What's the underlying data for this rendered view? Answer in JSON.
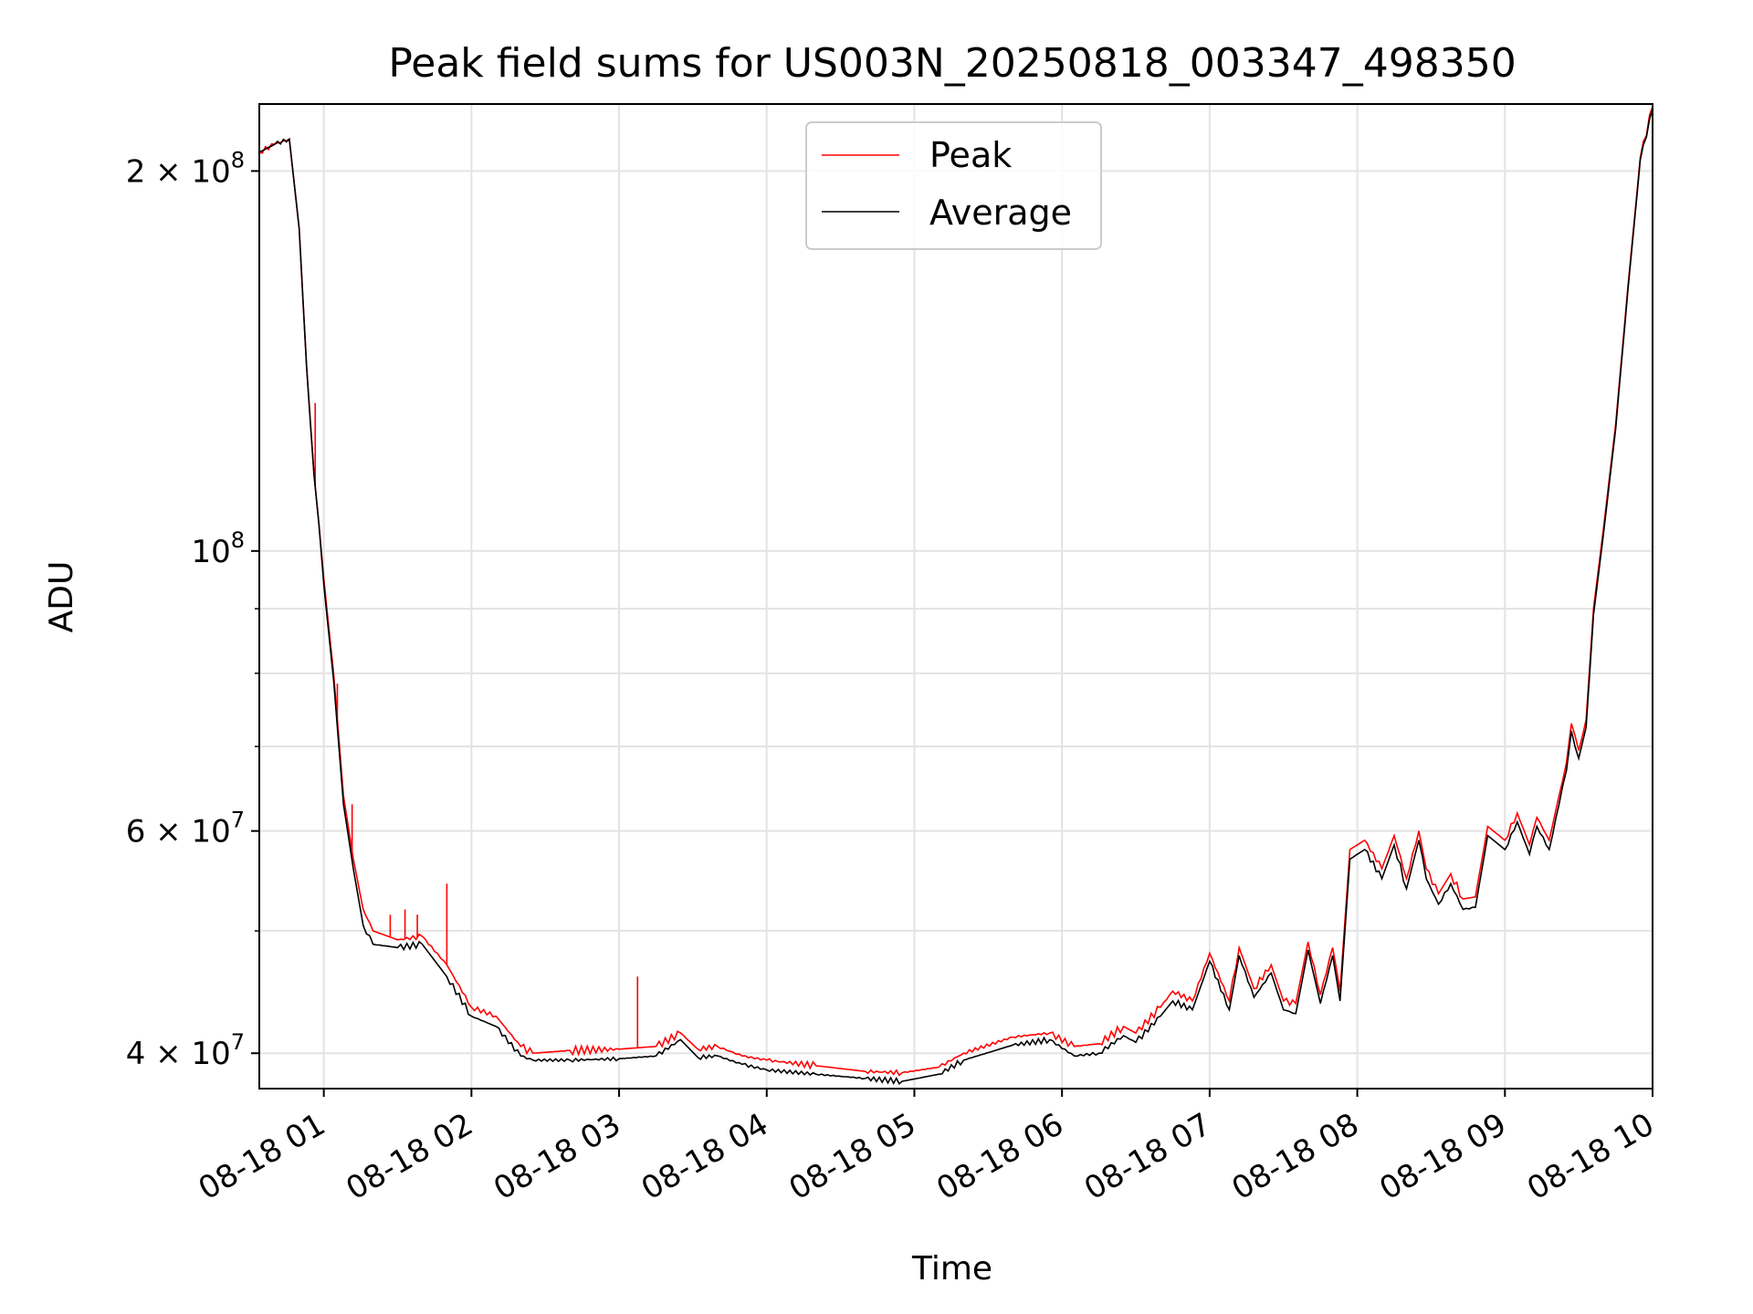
{
  "chart_data": {
    "type": "line",
    "title": "Peak field sums for US003N_20250818_003347_498350",
    "xlabel": "Time",
    "ylabel": "ADU",
    "yscale": "log",
    "xlim": [
      "2025-08-18T00:33:47",
      "2025-08-18T10:00:00"
    ],
    "ylim": [
      37500000,
      226000000
    ],
    "grid": true,
    "legend": {
      "placement": "upper center"
    },
    "x_ticks": [
      "08-18 01",
      "08-18 02",
      "08-18 03",
      "08-18 04",
      "08-18 05",
      "08-18 06",
      "08-18 07",
      "08-18 08",
      "08-18 09",
      "08-18 10"
    ],
    "y_ticks": [
      {
        "mantissa": "4",
        "exp": "7"
      },
      {
        "mantissa": "6",
        "exp": "7"
      },
      {
        "mantissa": "",
        "exp": "8"
      },
      {
        "mantissa": "2",
        "exp": "8"
      }
    ],
    "x": [
      "2025-08-18T00:33:47",
      "2025-08-18T00:40:00",
      "2025-08-18T00:46:00",
      "2025-08-18T00:50:00",
      "2025-08-18T00:53:00",
      "2025-08-18T00:56:00",
      "2025-08-18T00:58:00",
      "2025-08-18T01:00:00",
      "2025-08-18T01:04:00",
      "2025-08-18T01:08:00",
      "2025-08-18T01:12:00",
      "2025-08-18T01:16:00",
      "2025-08-18T01:20:00",
      "2025-08-18T01:30:00",
      "2025-08-18T01:40:00",
      "2025-08-18T01:50:00",
      "2025-08-18T02:00:00",
      "2025-08-18T02:10:00",
      "2025-08-18T02:20:00",
      "2025-08-18T02:25:00",
      "2025-08-18T02:40:00",
      "2025-08-18T03:00:00",
      "2025-08-18T03:15:00",
      "2025-08-18T03:25:00",
      "2025-08-18T03:32:00",
      "2025-08-18T03:40:00",
      "2025-08-18T03:50:00",
      "2025-08-18T04:00:00",
      "2025-08-18T04:20:00",
      "2025-08-18T04:40:00",
      "2025-08-18T04:55:00",
      "2025-08-18T05:10:00",
      "2025-08-18T05:20:00",
      "2025-08-18T05:40:00",
      "2025-08-18T05:55:00",
      "2025-08-18T06:05:00",
      "2025-08-18T06:15:00",
      "2025-08-18T06:25:00",
      "2025-08-18T06:30:00",
      "2025-08-18T06:40:00",
      "2025-08-18T06:45:00",
      "2025-08-18T06:53:00",
      "2025-08-18T07:00:00",
      "2025-08-18T07:08:00",
      "2025-08-18T07:12:00",
      "2025-08-18T07:18:00",
      "2025-08-18T07:25:00",
      "2025-08-18T07:30:00",
      "2025-08-18T07:35:00",
      "2025-08-18T07:40:00",
      "2025-08-18T07:45:00",
      "2025-08-18T07:50:00",
      "2025-08-18T07:53:00",
      "2025-08-18T07:57:00",
      "2025-08-18T08:03:00",
      "2025-08-18T08:10:00",
      "2025-08-18T08:15:00",
      "2025-08-18T08:20:00",
      "2025-08-18T08:25:00",
      "2025-08-18T08:28:00",
      "2025-08-18T08:33:00",
      "2025-08-18T08:38:00",
      "2025-08-18T08:43:00",
      "2025-08-18T08:48:00",
      "2025-08-18T08:53:00",
      "2025-08-18T09:00:00",
      "2025-08-18T09:05:00",
      "2025-08-18T09:10:00",
      "2025-08-18T09:13:00",
      "2025-08-18T09:18:00",
      "2025-08-18T09:22:00",
      "2025-08-18T09:25:00",
      "2025-08-18T09:27:00",
      "2025-08-18T09:30:00",
      "2025-08-18T09:33:00",
      "2025-08-18T09:36:00",
      "2025-08-18T09:40:00",
      "2025-08-18T09:45:00",
      "2025-08-18T09:50:00",
      "2025-08-18T09:55:00",
      "2025-08-18T10:00:00"
    ],
    "series": [
      {
        "name": "Peak",
        "color": "#ff0000",
        "values": [
          207000000,
          210000000,
          212000000,
          180000000,
          140000000,
          115000000,
          105000000,
          95000000,
          80000000,
          64000000,
          57000000,
          52000000,
          50000000,
          49200000,
          49500000,
          47000000,
          43500000,
          42800000,
          40500000,
          40000000,
          40200000,
          40300000,
          40500000,
          41500000,
          40300000,
          40500000,
          39800000,
          39500000,
          39100000,
          38700000,
          38600000,
          39000000,
          40000000,
          41200000,
          41500000,
          40500000,
          40700000,
          42000000,
          41500000,
          43500000,
          44800000,
          44000000,
          48000000,
          44000000,
          48500000,
          45000000,
          47000000,
          44000000,
          43800000,
          49000000,
          44500000,
          48500000,
          44800000,
          58000000,
          59000000,
          56000000,
          59500000,
          55000000,
          60000000,
          56000000,
          53500000,
          55500000,
          53000000,
          53200000,
          60500000,
          59000000,
          62000000,
          58500000,
          61500000,
          59000000,
          64000000,
          68000000,
          73000000,
          69500000,
          73500000,
          90000000,
          104000000,
          126000000,
          162000000,
          205000000,
          225000000
        ],
        "spikes": [
          {
            "x": "2025-08-18T00:56:30",
            "y": 131000000
          },
          {
            "x": "2025-08-18T01:05:30",
            "y": 78500000
          },
          {
            "x": "2025-08-18T01:11:30",
            "y": 63000000
          },
          {
            "x": "2025-08-18T01:27:00",
            "y": 51500000
          },
          {
            "x": "2025-08-18T01:33:00",
            "y": 52000000
          },
          {
            "x": "2025-08-18T01:38:00",
            "y": 51500000
          },
          {
            "x": "2025-08-18T01:50:00",
            "y": 54500000
          },
          {
            "x": "2025-08-18T03:07:30",
            "y": 46000000
          }
        ]
      },
      {
        "name": "Average",
        "color": "#000000",
        "values": [
          207000000,
          210000000,
          212000000,
          180000000,
          140000000,
          115000000,
          105000000,
          94000000,
          79000000,
          63000000,
          56000000,
          50500000,
          48800000,
          48500000,
          48800000,
          46000000,
          42800000,
          42000000,
          39800000,
          39500000,
          39500000,
          39600000,
          39800000,
          41000000,
          39700000,
          39800000,
          39200000,
          38800000,
          38500000,
          38200000,
          38000000,
          38500000,
          39500000,
          40600000,
          41000000,
          39800000,
          40000000,
          41300000,
          40800000,
          42800000,
          44000000,
          43300000,
          47300000,
          43300000,
          47800000,
          44300000,
          46300000,
          43300000,
          43000000,
          48300000,
          43800000,
          47800000,
          44000000,
          57000000,
          58000000,
          55000000,
          58500000,
          54000000,
          59000000,
          55000000,
          52500000,
          54500000,
          52000000,
          52200000,
          59500000,
          58000000,
          61000000,
          57500000,
          60500000,
          58000000,
          63000000,
          67000000,
          72000000,
          68500000,
          72500000,
          89000000,
          103000000,
          125000000,
          161000000,
          204000000,
          224000000
        ]
      }
    ]
  }
}
